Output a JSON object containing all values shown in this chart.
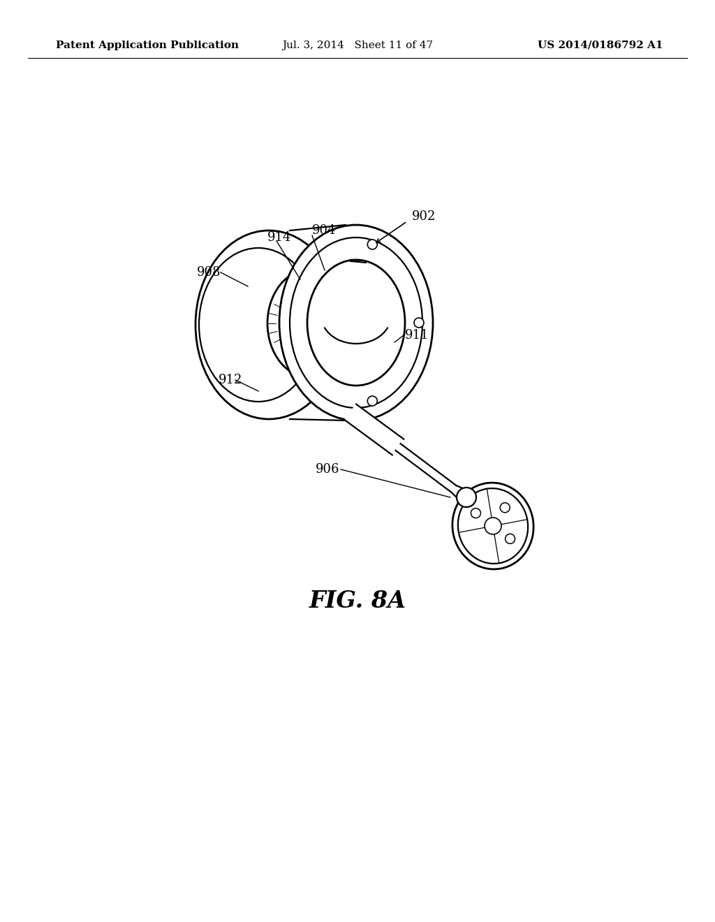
{
  "background_color": "#ffffff",
  "header_left": "Patent Application Publication",
  "header_center": "Jul. 3, 2014   Sheet 11 of 47",
  "header_right": "US 2014/0186792 A1",
  "figure_label": "FIG. 8A",
  "header_fontsize": 11,
  "label_fontsize": 13,
  "figure_label_fontsize": 24,
  "lw_main": 1.6,
  "lw_thick": 2.0
}
